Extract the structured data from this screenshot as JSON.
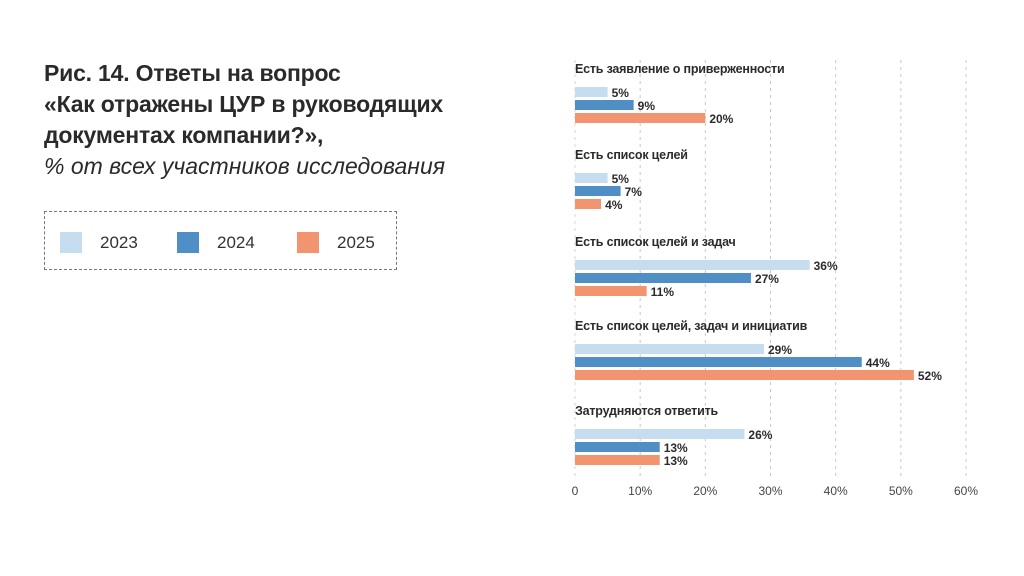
{
  "chart_data": {
    "type": "bar",
    "orientation": "horizontal",
    "title": "Рис. 14. Ответы на вопрос «Как отражены ЦУР в руководящих документах компании?»,",
    "title_lines": [
      "Рис. 14. Ответы на вопрос",
      "«Как отражены ЦУР в руководящих",
      "документах компании?»,"
    ],
    "subtitle": "% от всех участников исследования",
    "categories": [
      "Есть заявление о приверженности",
      "Есть список целей",
      "Есть список целей и задач",
      "Есть список целей, задач и инициатив",
      "Затрудняются ответить"
    ],
    "series": [
      {
        "name": "2023",
        "color": "#c6dcef",
        "values": [
          5,
          5,
          36,
          29,
          26
        ]
      },
      {
        "name": "2024",
        "color": "#4f8fc6",
        "values": [
          9,
          7,
          27,
          44,
          13
        ]
      },
      {
        "name": "2025",
        "color": "#f29470",
        "values": [
          20,
          4,
          11,
          52,
          13
        ]
      }
    ],
    "xlim": [
      0,
      60
    ],
    "xticks": [
      0,
      10,
      20,
      30,
      40,
      50,
      60
    ],
    "xtick_labels": [
      "0",
      "10%",
      "20%",
      "30%",
      "40%",
      "50%",
      "60%"
    ],
    "grid": "vertical dashed",
    "legend_placement": "left, under title"
  }
}
